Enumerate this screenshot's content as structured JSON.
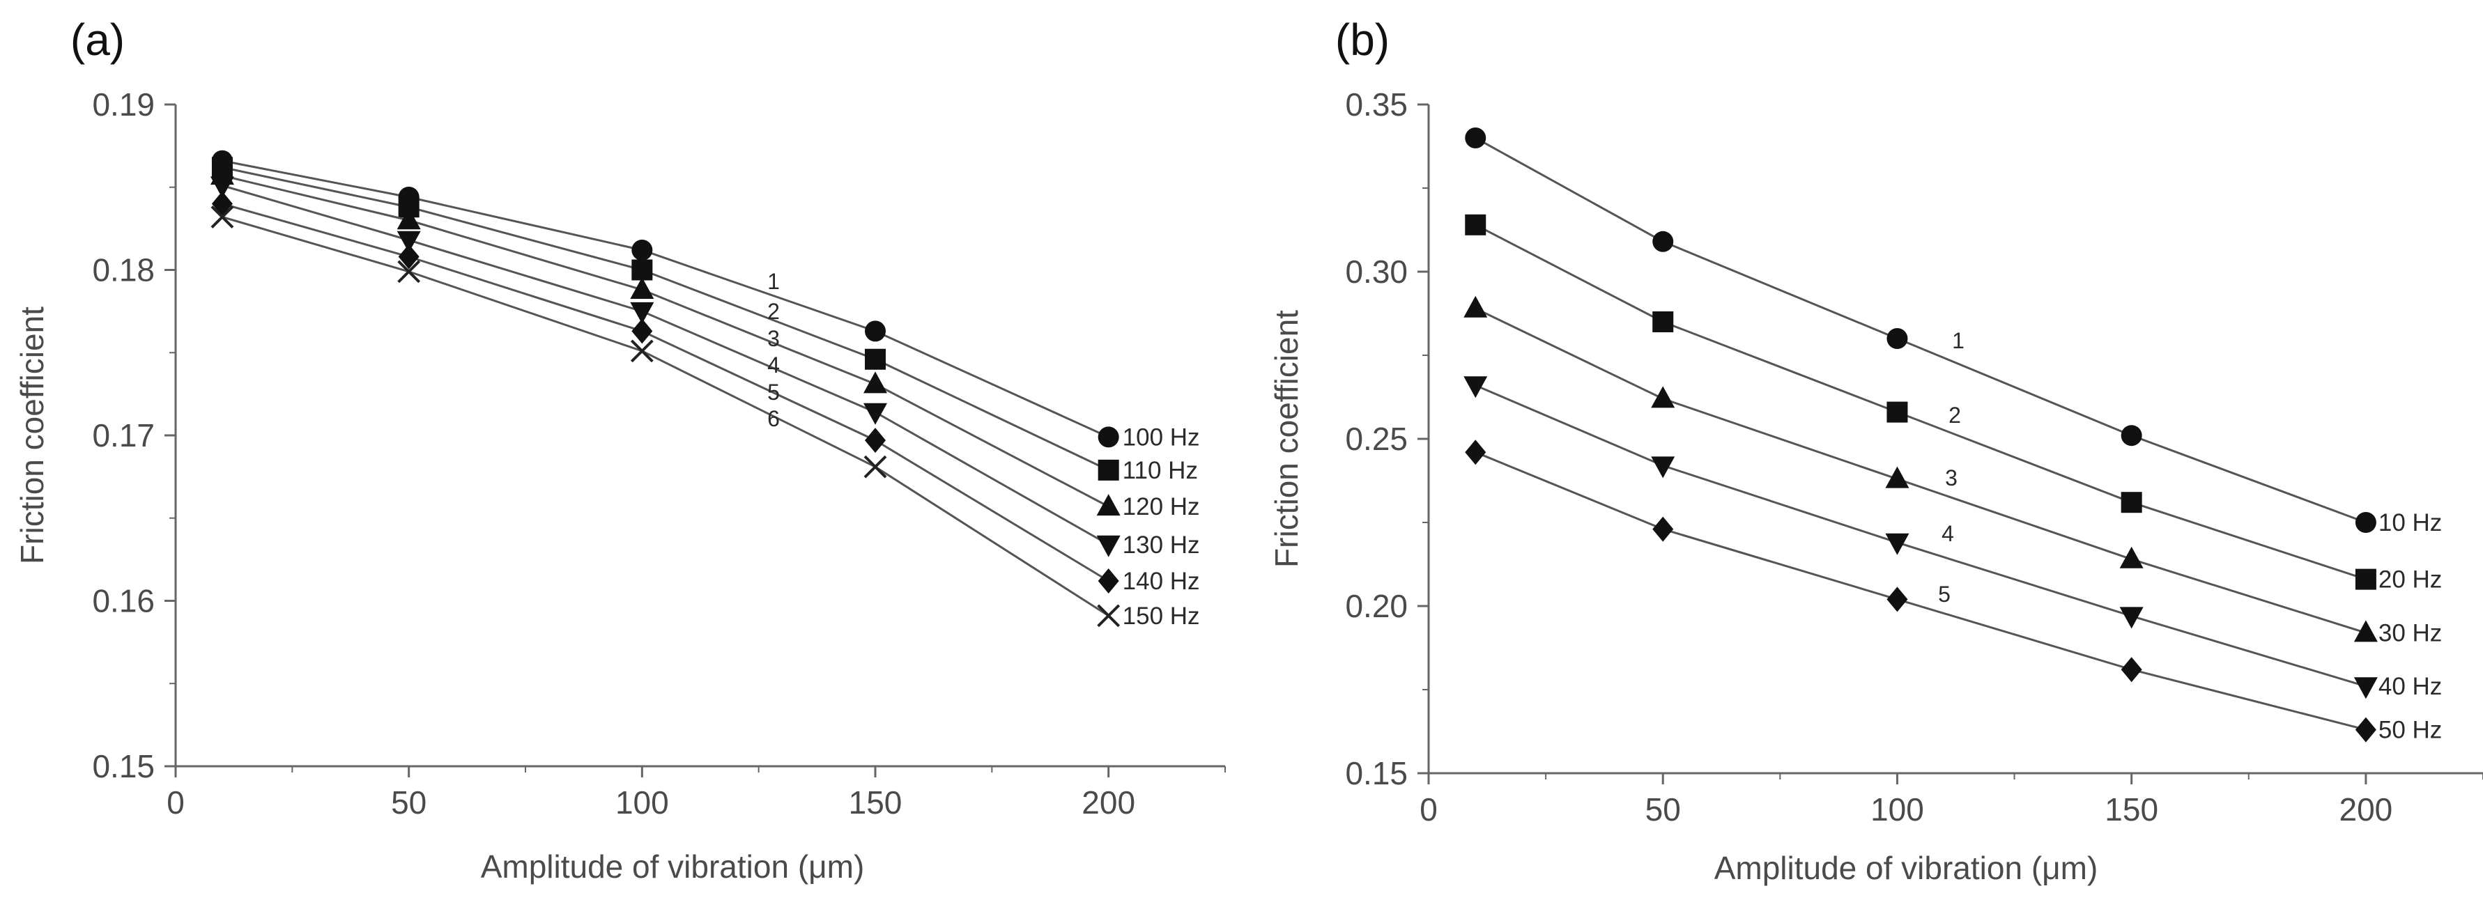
{
  "chart_data": [
    {
      "type": "line",
      "panel_label": "(a)",
      "xlabel": "Amplitude of vibration (μm)",
      "ylabel": "Friction coefficient",
      "xlim": [
        0,
        225
      ],
      "ylim": [
        0.15,
        0.19
      ],
      "xticks": [
        0,
        50,
        100,
        150,
        200
      ],
      "xtick_labels": [
        "0",
        "50",
        "100",
        "150",
        "200"
      ],
      "yticks": [
        0.15,
        0.16,
        0.17,
        0.18,
        0.19
      ],
      "ytick_labels": [
        "0.15",
        "0.16",
        "0.17",
        "0.18",
        "0.19"
      ],
      "x": [
        10,
        50,
        100,
        150,
        200
      ],
      "series": [
        {
          "name": "100 Hz",
          "curve": "1",
          "marker": "circle",
          "values": [
            0.1866,
            0.1844,
            0.1812,
            0.1763,
            0.1699
          ]
        },
        {
          "name": "110 Hz",
          "curve": "2",
          "marker": "square",
          "values": [
            0.1862,
            0.1838,
            0.18,
            0.1746,
            0.1679
          ]
        },
        {
          "name": "120 Hz",
          "curve": "3",
          "marker": "triangle-up",
          "values": [
            0.1857,
            0.183,
            0.1788,
            0.1731,
            0.1657
          ]
        },
        {
          "name": "130 Hz",
          "curve": "4",
          "marker": "triangle-down",
          "values": [
            0.1851,
            0.1818,
            0.1775,
            0.1714,
            0.1634
          ]
        },
        {
          "name": "140 Hz",
          "curve": "5",
          "marker": "diamond",
          "values": [
            0.184,
            0.1808,
            0.1763,
            0.1697,
            0.1612
          ]
        },
        {
          "name": "150 Hz",
          "curve": "6",
          "marker": "cross",
          "values": [
            0.1832,
            0.1799,
            0.1751,
            0.1681,
            0.1591
          ]
        }
      ]
    },
    {
      "type": "line",
      "panel_label": "(b)",
      "xlabel": "Amplitude of vibration (μm)",
      "ylabel": "Friction coefficient",
      "xlim": [
        0,
        225
      ],
      "ylim": [
        0.15,
        0.35
      ],
      "xticks": [
        0,
        50,
        100,
        150,
        200
      ],
      "xtick_labels": [
        "0",
        "50",
        "100",
        "150",
        "200"
      ],
      "yticks": [
        0.15,
        0.2,
        0.25,
        0.3,
        0.35
      ],
      "ytick_labels": [
        "0.15",
        "0.20",
        "0.25",
        "0.30",
        "0.35"
      ],
      "x": [
        10,
        50,
        100,
        150,
        200
      ],
      "series": [
        {
          "name": "10 Hz",
          "curve": "1",
          "marker": "circle",
          "values": [
            0.34,
            0.309,
            0.28,
            0.251,
            0.225
          ]
        },
        {
          "name": "20 Hz",
          "curve": "2",
          "marker": "square",
          "values": [
            0.314,
            0.285,
            0.258,
            0.231,
            0.208
          ]
        },
        {
          "name": "30 Hz",
          "curve": "3",
          "marker": "triangle-up",
          "values": [
            0.289,
            0.262,
            0.238,
            0.214,
            0.192
          ]
        },
        {
          "name": "40 Hz",
          "curve": "4",
          "marker": "triangle-down",
          "values": [
            0.266,
            0.242,
            0.219,
            0.197,
            0.176
          ]
        },
        {
          "name": "50 Hz",
          "curve": "5",
          "marker": "diamond",
          "values": [
            0.246,
            0.223,
            0.202,
            0.181,
            0.163
          ]
        }
      ]
    }
  ]
}
